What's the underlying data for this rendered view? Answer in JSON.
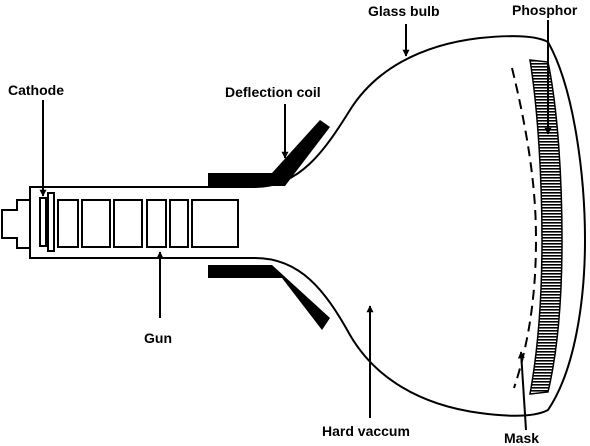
{
  "diagram": {
    "labels": {
      "glass_bulb": "Glass bulb",
      "phosphor": "Phosphor",
      "cathode": "Cathode",
      "deflection_coil": "Deflection coil",
      "gun": "Gun",
      "hard_vacuum": "Hard vaccum",
      "mask": "Mask"
    },
    "colors": {
      "stroke": "#000000",
      "background": "#ffffff"
    }
  }
}
